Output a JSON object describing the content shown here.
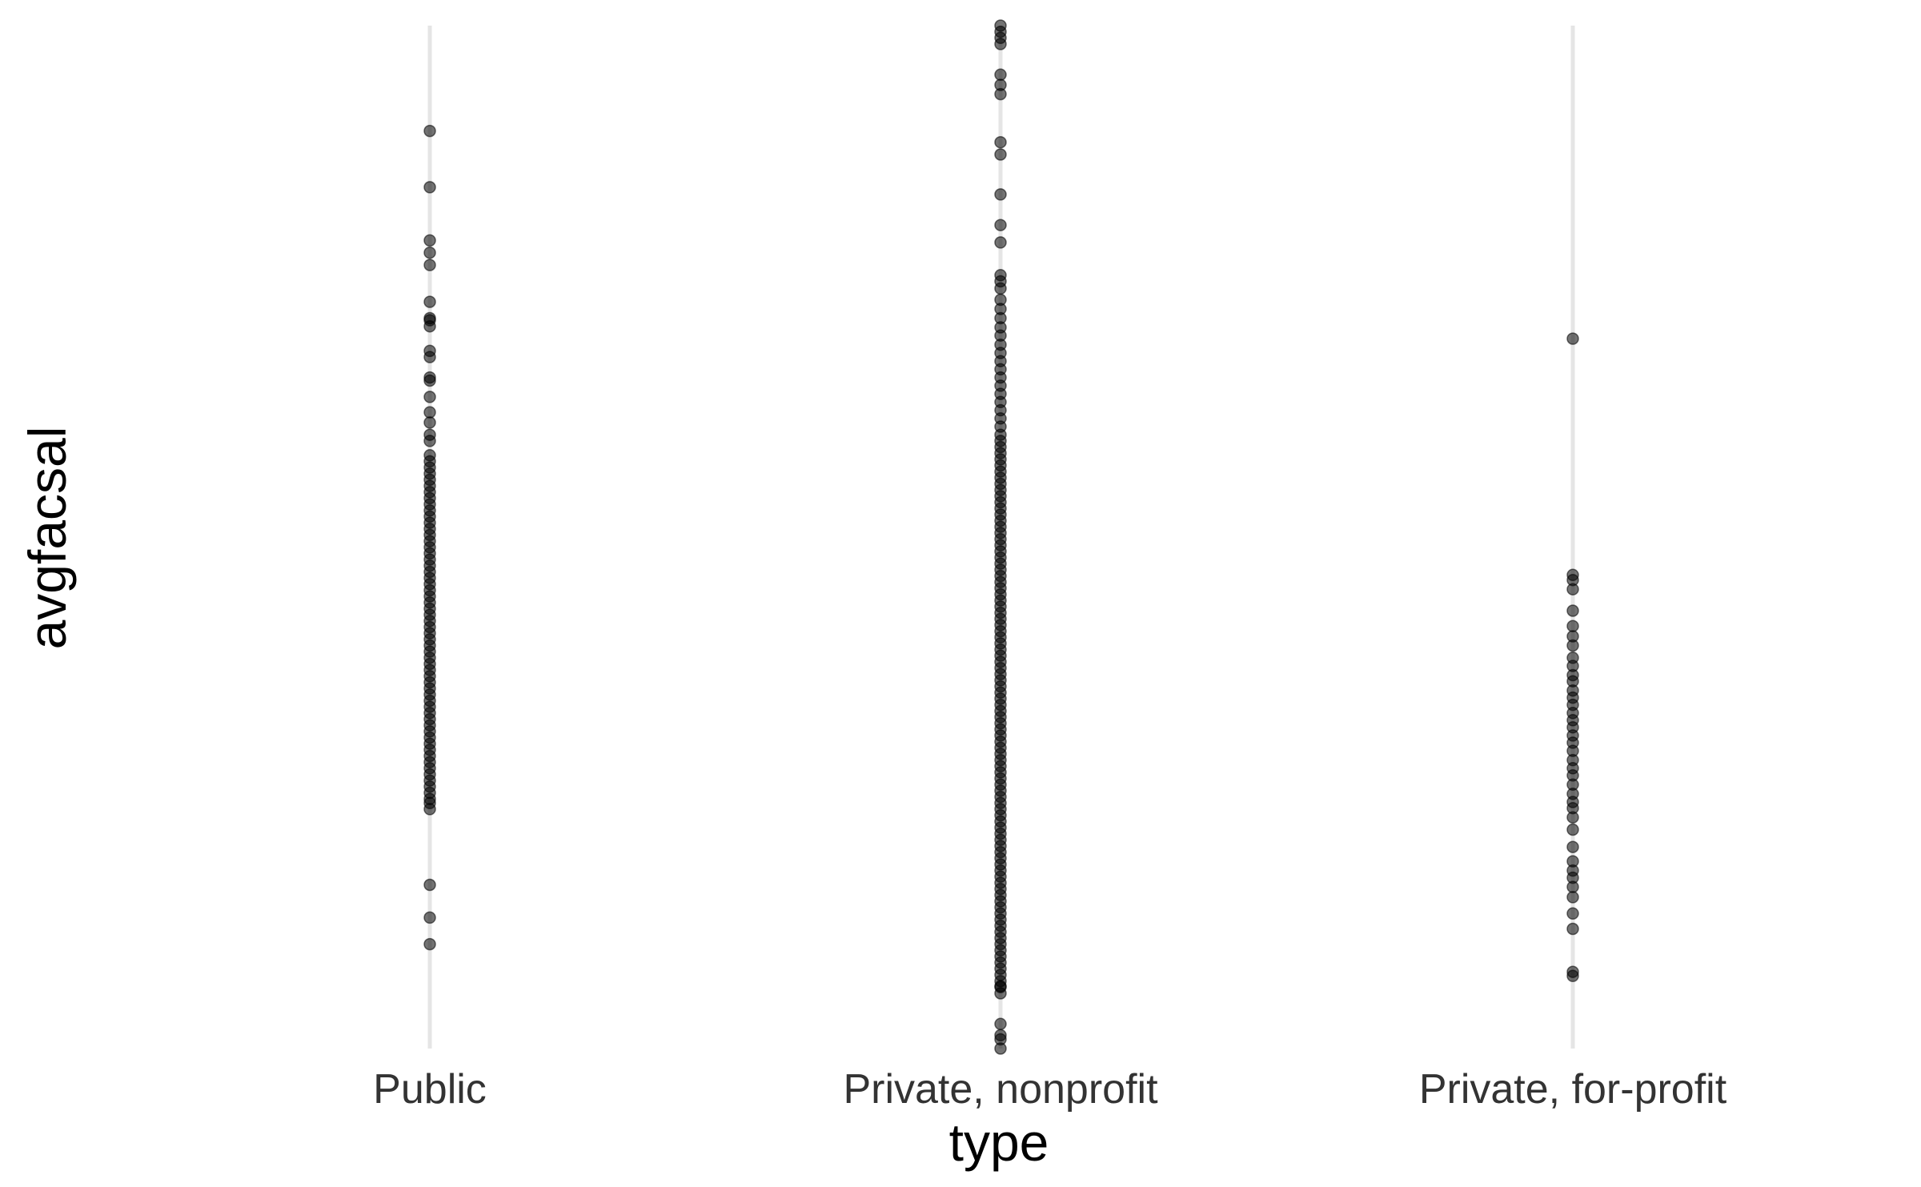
{
  "chart_data": {
    "type": "scatter",
    "xlabel": "type",
    "ylabel": "avgfacsal",
    "categories": [
      "Public",
      "Private, nonprofit",
      "Private, for-profit"
    ],
    "ylim": [
      0,
      100
    ],
    "y_ticks_shown": false,
    "grid": "vertical-major",
    "legend": "none",
    "colors": {
      "point": "#000000",
      "grid": "#e5e5e5",
      "tick_text": "#333333",
      "title_text": "#000000"
    },
    "series": [
      {
        "category": "Public",
        "values": [
          89.7,
          84.2,
          79,
          77.8,
          76.6,
          73,
          71.4,
          71.2,
          70.6,
          68.2,
          67.6,
          65.6,
          65.3,
          63.7,
          62.2,
          61.2,
          60,
          59.4,
          58,
          57.4,
          56.8,
          56.2,
          55.6,
          55,
          54.4,
          53.8,
          53.2,
          52.6,
          52,
          51.4,
          50.8,
          50.2,
          49.6,
          49,
          48.4,
          47.8,
          47.2,
          46.6,
          46,
          45.4,
          44.8,
          44.2,
          43.6,
          43,
          42.4,
          41.8,
          41.2,
          40.6,
          40,
          39.4,
          38.8,
          38.2,
          37.6,
          37,
          36.4,
          35.8,
          35.2,
          34.6,
          34,
          33.4,
          32.8,
          32.2,
          31.6,
          31,
          30.4,
          29.8,
          29.2,
          28.6,
          28,
          27.4,
          26.8,
          26.2,
          25.6,
          25,
          24.4,
          24,
          23.4,
          16,
          12.8,
          10.2
        ]
      },
      {
        "category": "Private, nonprofit",
        "values": [
          100,
          99.4,
          98.8,
          98.2,
          95.2,
          94.2,
          93.3,
          88.6,
          87.4,
          83.5,
          80.5,
          78.8,
          75.6,
          75,
          74.3,
          73.2,
          72.3,
          71.4,
          70.5,
          69.7,
          68.8,
          68,
          67.2,
          66.4,
          65.6,
          64.8,
          64,
          63.2,
          62.4,
          61.6,
          60.8,
          60,
          59.4,
          58.8,
          58.2,
          57.6,
          57,
          56.4,
          55.8,
          55.2,
          54.6,
          54,
          53.4,
          52.8,
          52.2,
          51.6,
          51,
          50.4,
          49.8,
          49.2,
          48.6,
          48,
          47.4,
          46.8,
          46.2,
          45.6,
          45,
          44.4,
          43.8,
          43.2,
          42.6,
          42,
          41.4,
          40.8,
          40.2,
          39.6,
          39,
          38.4,
          37.8,
          37.2,
          36.6,
          36,
          35.4,
          34.8,
          34.2,
          33.6,
          33,
          32.4,
          31.8,
          31.2,
          30.6,
          30,
          29.4,
          28.8,
          28.2,
          27.6,
          27,
          26.4,
          25.8,
          25.2,
          24.6,
          24,
          23.4,
          22.8,
          22.2,
          21.6,
          21,
          20.4,
          19.8,
          19.2,
          18.6,
          18,
          17.4,
          16.8,
          16.2,
          15.6,
          15,
          14.4,
          13.8,
          13.2,
          12.6,
          12,
          11.4,
          10.8,
          10.2,
          9.6,
          9,
          8.4,
          7.8,
          7.2,
          6.6,
          6,
          5.4,
          6.1,
          2.4,
          1.3,
          0.9,
          0
        ]
      },
      {
        "category": "Private, for-profit",
        "values": [
          69.4,
          46.3,
          45.8,
          44.9,
          42.8,
          41.3,
          40.3,
          39.4,
          38.2,
          37.4,
          36.5,
          35.9,
          35,
          34.3,
          33.6,
          32.8,
          32.1,
          31.4,
          30.6,
          29.9,
          29.1,
          28.2,
          27.4,
          26.7,
          25.8,
          24.9,
          24.1,
          23.5,
          22.6,
          21.4,
          19.7,
          18.3,
          17.4,
          16.7,
          15.8,
          14.8,
          13.2,
          11.7,
          7.5,
          7.1
        ]
      }
    ]
  }
}
